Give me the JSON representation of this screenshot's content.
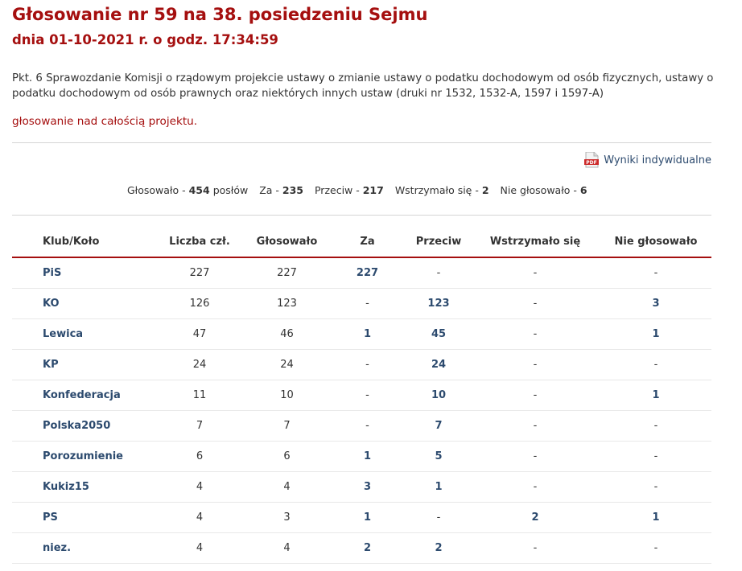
{
  "header": {
    "title": "Głosowanie nr 59 na 38. posiedzeniu Sejmu",
    "subtitle": "dnia 01-10-2021 r. o godz. 17:34:59"
  },
  "description": "Pkt. 6 Sprawozdanie Komisji o rządowym projekcie ustawy o zmianie ustawy o podatku dochodowym od osób fizycznych, ustawy o podatku dochodowym od osób prawnych oraz niektórych innych ustaw (druki nr 1532, 1532-A, 1597 i 1597-A)",
  "vote_mode": "głosowanie nad całością projektu.",
  "pdf_link": {
    "icon": "pdf-icon",
    "icon_text": "PDF",
    "label": "Wyniki indywidualne"
  },
  "summary": {
    "voted_label": "Głosowało -",
    "voted_value": "454",
    "voted_suffix": "posłów",
    "za_label": "Za -",
    "za_value": "235",
    "przeciw_label": "Przeciw -",
    "przeciw_value": "217",
    "wstrzymalo_label": "Wstrzymało się -",
    "wstrzymalo_value": "2",
    "nie_glosowalo_label": "Nie głosowało -",
    "nie_glosowalo_value": "6"
  },
  "table": {
    "headers": [
      "Klub/Koło",
      "Liczba czł.",
      "Głosowało",
      "Za",
      "Przeciw",
      "Wstrzymało się",
      "Nie głosowało"
    ],
    "rows": [
      {
        "club": "PiS",
        "members": "227",
        "voted": "227",
        "za": "227",
        "przeciw": "-",
        "wstrzymalo": "-",
        "nie": "-"
      },
      {
        "club": "KO",
        "members": "126",
        "voted": "123",
        "za": "-",
        "przeciw": "123",
        "wstrzymalo": "-",
        "nie": "3"
      },
      {
        "club": "Lewica",
        "members": "47",
        "voted": "46",
        "za": "1",
        "przeciw": "45",
        "wstrzymalo": "-",
        "nie": "1"
      },
      {
        "club": "KP",
        "members": "24",
        "voted": "24",
        "za": "-",
        "przeciw": "24",
        "wstrzymalo": "-",
        "nie": "-"
      },
      {
        "club": "Konfederacja",
        "members": "11",
        "voted": "10",
        "za": "-",
        "przeciw": "10",
        "wstrzymalo": "-",
        "nie": "1"
      },
      {
        "club": "Polska2050",
        "members": "7",
        "voted": "7",
        "za": "-",
        "przeciw": "7",
        "wstrzymalo": "-",
        "nie": "-"
      },
      {
        "club": "Porozumienie",
        "members": "6",
        "voted": "6",
        "za": "1",
        "przeciw": "5",
        "wstrzymalo": "-",
        "nie": "-"
      },
      {
        "club": "Kukiz15",
        "members": "4",
        "voted": "4",
        "za": "3",
        "przeciw": "1",
        "wstrzymalo": "-",
        "nie": "-"
      },
      {
        "club": "PS",
        "members": "4",
        "voted": "3",
        "za": "1",
        "przeciw": "-",
        "wstrzymalo": "2",
        "nie": "1"
      },
      {
        "club": "niez.",
        "members": "4",
        "voted": "4",
        "za": "2",
        "przeciw": "2",
        "wstrzymalo": "-",
        "nie": "-"
      }
    ]
  },
  "colors": {
    "accent": "#a50f0f",
    "link": "#2c4a6e",
    "text": "#333333",
    "divider": "#d5d5d5"
  }
}
